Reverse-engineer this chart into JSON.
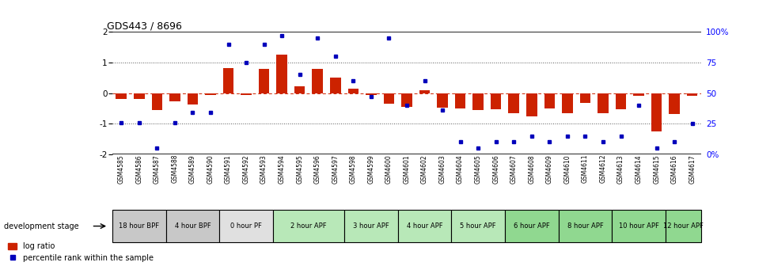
{
  "title": "GDS443 / 8696",
  "samples": [
    "GSM4585",
    "GSM4586",
    "GSM4587",
    "GSM4588",
    "GSM4589",
    "GSM4590",
    "GSM4591",
    "GSM4592",
    "GSM4593",
    "GSM4594",
    "GSM4595",
    "GSM4596",
    "GSM4597",
    "GSM4598",
    "GSM4599",
    "GSM4600",
    "GSM4601",
    "GSM4602",
    "GSM4603",
    "GSM4604",
    "GSM4605",
    "GSM4606",
    "GSM4607",
    "GSM4608",
    "GSM4609",
    "GSM4610",
    "GSM4611",
    "GSM4612",
    "GSM4613",
    "GSM4614",
    "GSM4615",
    "GSM4616",
    "GSM4617"
  ],
  "log_ratio": [
    -0.18,
    -0.18,
    -0.55,
    -0.28,
    -0.38,
    -0.05,
    0.82,
    -0.07,
    0.78,
    1.25,
    0.22,
    0.78,
    0.5,
    0.14,
    -0.07,
    -0.35,
    -0.45,
    0.1,
    -0.48,
    -0.5,
    -0.55,
    -0.52,
    -0.65,
    -0.75,
    -0.5,
    -0.65,
    -0.32,
    -0.65,
    -0.52,
    -0.08,
    -1.25,
    -0.68,
    -0.08
  ],
  "percentile": [
    26,
    26,
    5,
    26,
    34,
    34,
    90,
    75,
    90,
    97,
    65,
    95,
    80,
    60,
    47,
    95,
    40,
    60,
    36,
    10,
    5,
    10,
    10,
    15,
    10,
    15,
    15,
    10,
    15,
    40,
    5,
    10,
    25
  ],
  "stage_groups": [
    {
      "label": "18 hour BPF",
      "start": 0,
      "end": 2,
      "color": "#c8c8c8"
    },
    {
      "label": "4 hour BPF",
      "start": 3,
      "end": 5,
      "color": "#c8c8c8"
    },
    {
      "label": "0 hour PF",
      "start": 6,
      "end": 8,
      "color": "#e0e0e0"
    },
    {
      "label": "2 hour APF",
      "start": 9,
      "end": 12,
      "color": "#b8e8b8"
    },
    {
      "label": "3 hour APF",
      "start": 13,
      "end": 15,
      "color": "#b8e8b8"
    },
    {
      "label": "4 hour APF",
      "start": 16,
      "end": 18,
      "color": "#b8e8b8"
    },
    {
      "label": "5 hour APF",
      "start": 19,
      "end": 21,
      "color": "#b8e8b8"
    },
    {
      "label": "6 hour APF",
      "start": 22,
      "end": 24,
      "color": "#90d890"
    },
    {
      "label": "8 hour APF",
      "start": 25,
      "end": 27,
      "color": "#90d890"
    },
    {
      "label": "10 hour APF",
      "start": 28,
      "end": 30,
      "color": "#90d890"
    },
    {
      "label": "12 hour APF",
      "start": 31,
      "end": 32,
      "color": "#90d890"
    }
  ],
  "bar_color": "#cc2200",
  "dot_color": "#0000bb",
  "ylim": [
    -2,
    2
  ],
  "y2lim": [
    0,
    100
  ],
  "y_ticks": [
    -2,
    -1,
    0,
    1,
    2
  ],
  "y2_ticks": [
    0,
    25,
    50,
    75,
    100
  ],
  "y2_tick_labels": [
    "0%",
    "25",
    "50",
    "75",
    "100%"
  ],
  "hline_color": "#cc2200",
  "dotted_line_color": "#555555"
}
